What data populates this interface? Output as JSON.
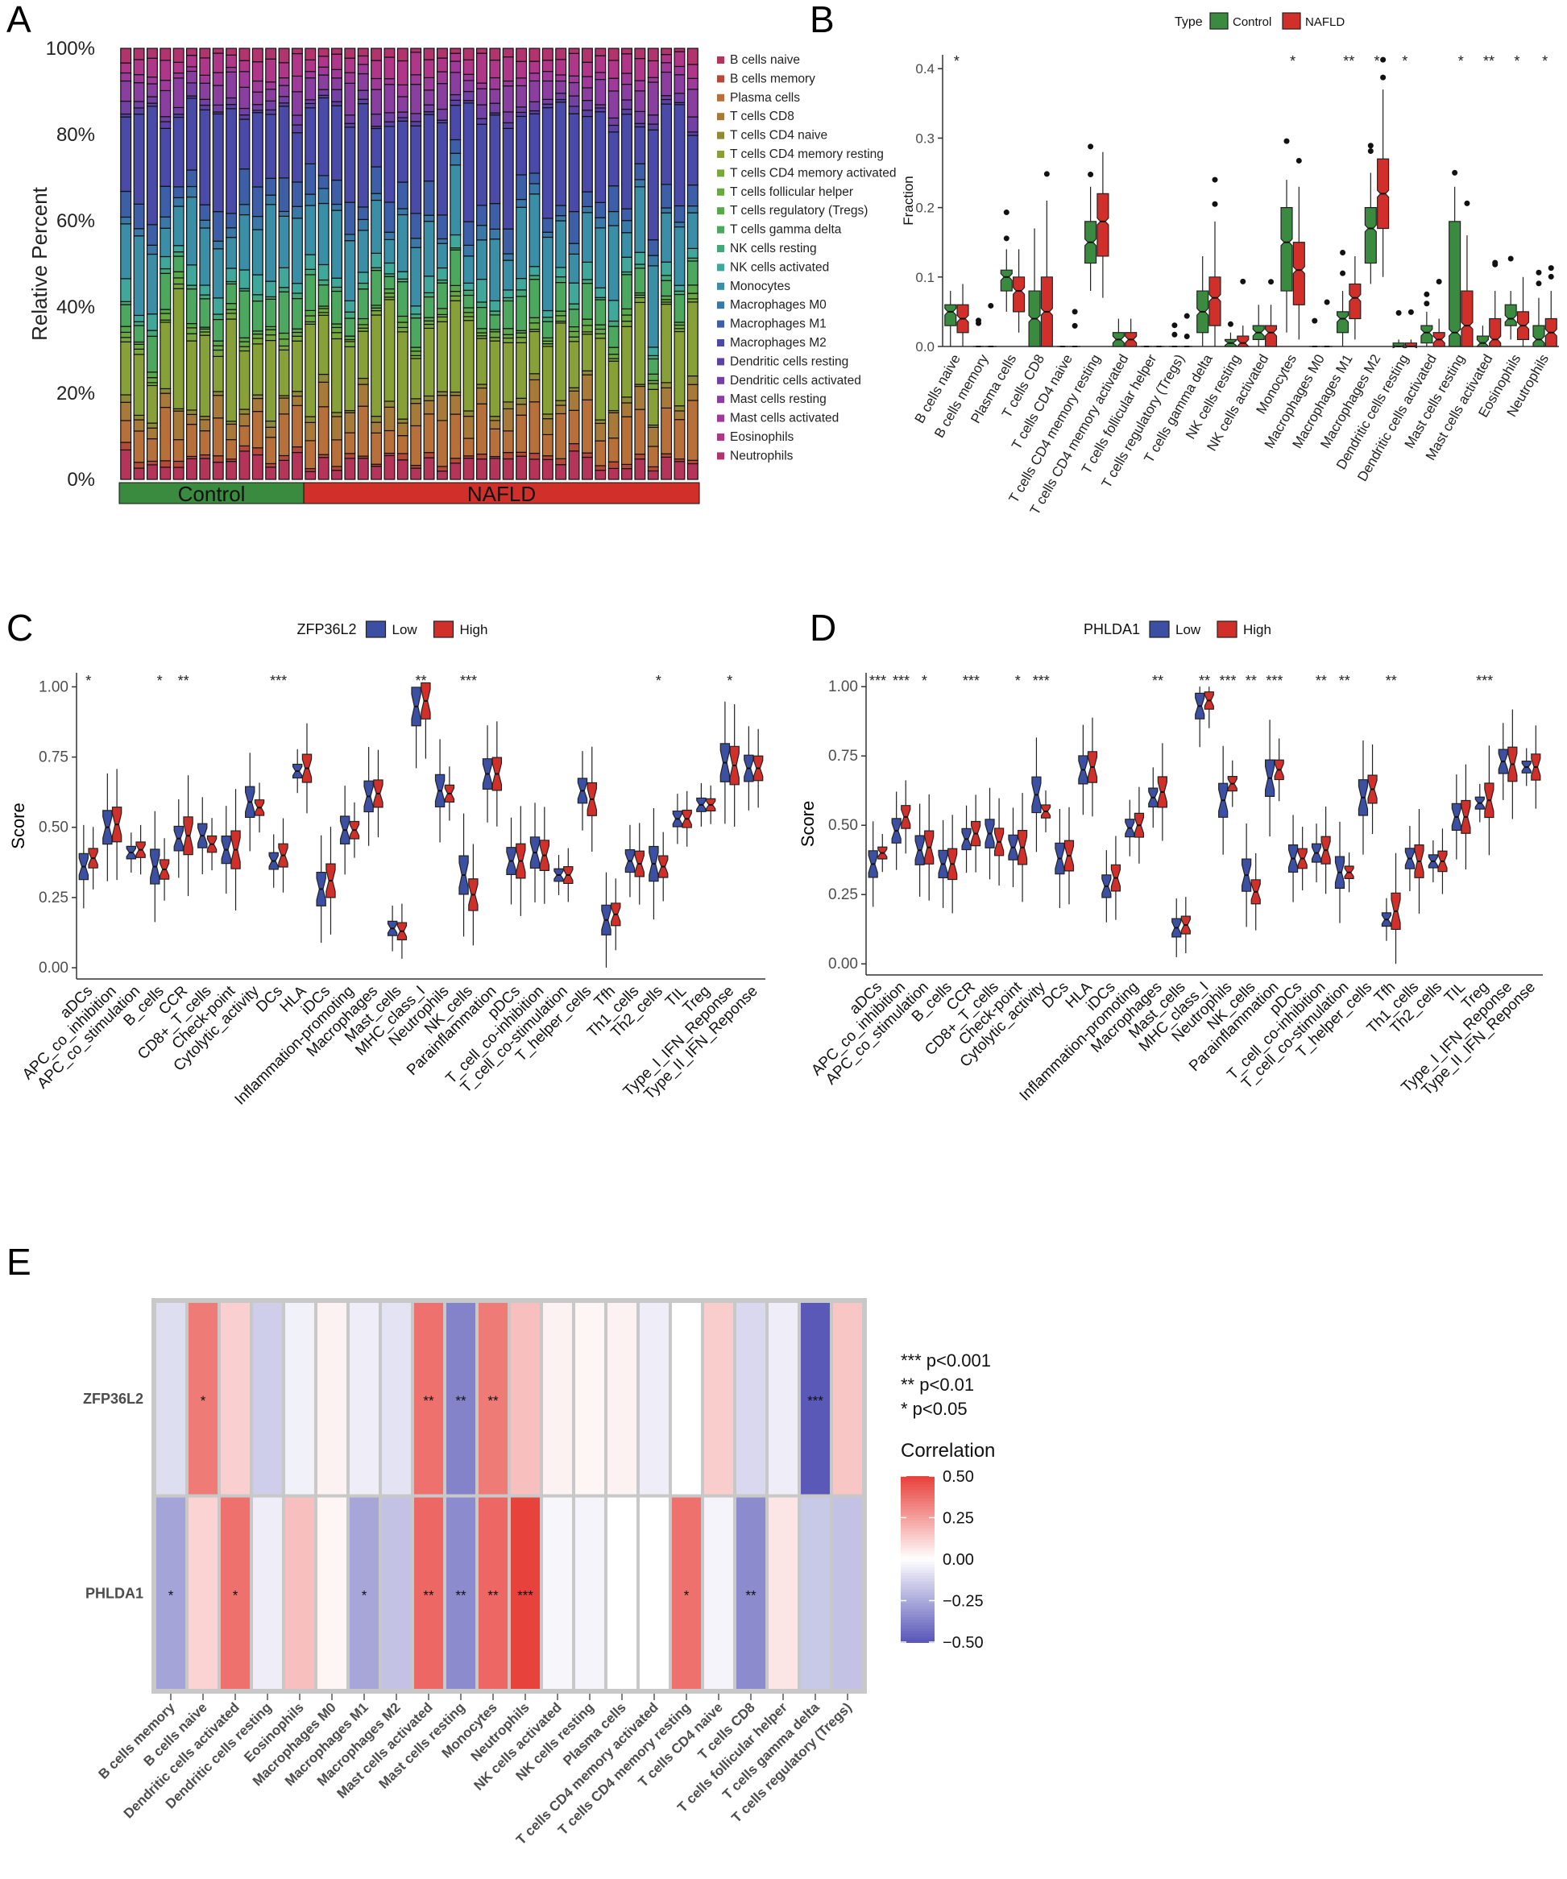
{
  "panels": {
    "A": {
      "letter": "A"
    },
    "B": {
      "letter": "B"
    },
    "C": {
      "letter": "C"
    },
    "D": {
      "letter": "D"
    },
    "E": {
      "letter": "E"
    }
  },
  "colors": {
    "control": "#3a8a3f",
    "nafld": "#d1302a",
    "low": "#3b4fa3",
    "high": "#d1302a",
    "heat_pos": "#e8423d",
    "heat_neg": "#5b59b8"
  },
  "chart_data": [
    {
      "panel": "A",
      "type": "bar",
      "stacked": true,
      "ylabel": "Relative Percent",
      "yticks": [
        "0%",
        "20%",
        "40%",
        "60%",
        "80%",
        "100%"
      ],
      "ylim": [
        0,
        1
      ],
      "group_labels": [
        "Control",
        "NAFLD"
      ],
      "group_counts": [
        14,
        30
      ],
      "series": [
        {
          "name": "B cells naive",
          "color": "#b5345a",
          "mean": 0.04
        },
        {
          "name": "B cells memory",
          "color": "#b54a38",
          "mean": 0.01
        },
        {
          "name": "Plasma cells",
          "color": "#b8703a",
          "mean": 0.08
        },
        {
          "name": "T cells CD8",
          "color": "#a87a3a",
          "mean": 0.04
        },
        {
          "name": "T cells CD4 naive",
          "color": "#8e8a38",
          "mean": 0.01
        },
        {
          "name": "T cells CD4 memory resting",
          "color": "#88a038",
          "mean": 0.17
        },
        {
          "name": "T cells CD4 memory activated",
          "color": "#78a83c",
          "mean": 0.01
        },
        {
          "name": "T cells follicular helper",
          "color": "#6aa843",
          "mean": 0.01
        },
        {
          "name": "T cells regulatory (Tregs)",
          "color": "#5aa84c",
          "mean": 0.01
        },
        {
          "name": "T cells gamma delta",
          "color": "#4ca85e",
          "mean": 0.06
        },
        {
          "name": "NK cells resting",
          "color": "#45a87a",
          "mean": 0.01
        },
        {
          "name": "NK cells activated",
          "color": "#3fa89a",
          "mean": 0.03
        },
        {
          "name": "Monocytes",
          "color": "#3a8ea6",
          "mean": 0.12
        },
        {
          "name": "Macrophages M0",
          "color": "#3a78a8",
          "mean": 0.02
        },
        {
          "name": "Macrophages M1",
          "color": "#3d5fa8",
          "mean": 0.05
        },
        {
          "name": "Macrophages M2",
          "color": "#4a4aa8",
          "mean": 0.19
        },
        {
          "name": "Dendritic cells resting",
          "color": "#5d42a6",
          "mean": 0.01
        },
        {
          "name": "Dendritic cells activated",
          "color": "#7340a3",
          "mean": 0.02
        },
        {
          "name": "Mast cells resting",
          "color": "#8a3ea0",
          "mean": 0.05
        },
        {
          "name": "Mast cells activated",
          "color": "#a03a9a",
          "mean": 0.02
        },
        {
          "name": "Eosinophils",
          "color": "#b0368a",
          "mean": 0.04
        },
        {
          "name": "Neutrophils",
          "color": "#b2346c",
          "mean": 0.02
        }
      ]
    },
    {
      "panel": "B",
      "type": "box",
      "ylabel": "Fraction",
      "ylim": [
        0,
        0.42
      ],
      "yticks": [
        "0.0",
        "0.1",
        "0.2",
        "0.3",
        "0.4"
      ],
      "legend_title": "Type",
      "legend_labels": [
        "Control",
        "NAFLD"
      ],
      "categories": [
        "B cells naive",
        "B cells memory",
        "Plasma cells",
        "T cells CD8",
        "T cells CD4 naive",
        "T cells CD4 memory resting",
        "T cells CD4 memory activated",
        "T cells follicular helper",
        "T cells regulatory (Tregs)",
        "T cells gamma delta",
        "NK cells resting",
        "NK cells activated",
        "Monocytes",
        "Macrophages M0",
        "Macrophages M1",
        "Macrophages M2",
        "Dendritic cells resting",
        "Dendritic cells activated",
        "Mast cells resting",
        "Mast cells activated",
        "Eosinophils",
        "Neutrophils"
      ],
      "significance": [
        "*",
        "",
        "",
        "",
        "",
        "",
        "",
        "",
        "",
        "",
        "",
        "",
        "*",
        "",
        "**",
        "*",
        "*",
        "",
        "*",
        "**",
        "*",
        "*"
      ],
      "series": [
        {
          "name": "Control",
          "medians": [
            0.05,
            0.0,
            0.1,
            0.04,
            0.0,
            0.15,
            0.01,
            0.0,
            0.0,
            0.05,
            0.005,
            0.02,
            0.15,
            0.0,
            0.04,
            0.17,
            0.0,
            0.02,
            0.02,
            0.005,
            0.04,
            0.01
          ],
          "q1": [
            0.03,
            0.0,
            0.08,
            0.0,
            0.0,
            0.12,
            0.0,
            0.0,
            0.0,
            0.02,
            0.0,
            0.01,
            0.08,
            0.0,
            0.02,
            0.12,
            0.0,
            0.005,
            0.0,
            0.0,
            0.03,
            0.0
          ],
          "q3": [
            0.06,
            0.0,
            0.11,
            0.08,
            0.0,
            0.18,
            0.02,
            0.0,
            0.0,
            0.08,
            0.01,
            0.03,
            0.2,
            0.0,
            0.05,
            0.2,
            0.005,
            0.03,
            0.18,
            0.015,
            0.06,
            0.03
          ],
          "lo": [
            0.0,
            0.0,
            0.05,
            0.0,
            0.0,
            0.08,
            0.0,
            0.0,
            0.0,
            0.0,
            0.0,
            0.0,
            0.02,
            0.0,
            0.0,
            0.09,
            0.0,
            0.0,
            0.0,
            0.0,
            0.01,
            0.0
          ],
          "hi": [
            0.08,
            0.0,
            0.14,
            0.17,
            0.0,
            0.23,
            0.04,
            0.0,
            0.0,
            0.13,
            0.02,
            0.06,
            0.24,
            0.0,
            0.08,
            0.25,
            0.01,
            0.05,
            0.23,
            0.03,
            0.08,
            0.07
          ]
        },
        {
          "name": "NAFLD",
          "medians": [
            0.04,
            0.0,
            0.08,
            0.05,
            0.0,
            0.18,
            0.01,
            0.0,
            0.0,
            0.07,
            0.005,
            0.02,
            0.11,
            0.0,
            0.07,
            0.22,
            0.0,
            0.01,
            0.03,
            0.01,
            0.03,
            0.02
          ],
          "q1": [
            0.02,
            0.0,
            0.05,
            0.0,
            0.0,
            0.13,
            0.0,
            0.0,
            0.0,
            0.03,
            0.0,
            0.0,
            0.06,
            0.0,
            0.04,
            0.17,
            0.0,
            0.0,
            0.0,
            0.0,
            0.01,
            0.0
          ],
          "q3": [
            0.06,
            0.0,
            0.1,
            0.1,
            0.0,
            0.22,
            0.02,
            0.0,
            0.0,
            0.1,
            0.015,
            0.03,
            0.15,
            0.0,
            0.09,
            0.27,
            0.005,
            0.02,
            0.08,
            0.04,
            0.05,
            0.04
          ],
          "lo": [
            0.0,
            0.0,
            0.02,
            0.0,
            0.0,
            0.07,
            0.0,
            0.0,
            0.0,
            0.0,
            0.0,
            0.0,
            0.01,
            0.0,
            0.01,
            0.1,
            0.0,
            0.0,
            0.0,
            0.0,
            0.0,
            0.0
          ],
          "hi": [
            0.09,
            0.0,
            0.14,
            0.21,
            0.0,
            0.28,
            0.04,
            0.0,
            0.0,
            0.18,
            0.03,
            0.06,
            0.23,
            0.0,
            0.13,
            0.37,
            0.01,
            0.04,
            0.16,
            0.08,
            0.1,
            0.08
          ]
        }
      ]
    },
    {
      "panel": "C",
      "type": "box",
      "ylabel": "Score",
      "ylim": [
        -0.04,
        1.05
      ],
      "yticks": [
        "0.00",
        "0.25",
        "0.50",
        "0.75",
        "1.00"
      ],
      "legend_title": "ZFP36L2",
      "legend_labels": [
        "Low",
        "High"
      ],
      "categories": [
        "aDCs",
        "APC_co_inhibition",
        "APC_co_stimulation",
        "B_cells",
        "CCR",
        "CD8+_T_cells",
        "Check-point",
        "Cytolytic_activity",
        "DCs",
        "HLA",
        "iDCs",
        "Inflammation-promoting",
        "Macrophages",
        "Mast_cells",
        "MHC_class_I",
        "Neutrophils",
        "NK_cells",
        "Parainflammation",
        "pDCs",
        "T_cell_co-inhibition",
        "T_cell_co-stimulation",
        "T_helper_cells",
        "Tfh",
        "Th1_cells",
        "Th2_cells",
        "TIL",
        "Treg",
        "Type_I_IFN_Reponse",
        "Type_II_IFN_Reponse"
      ],
      "significance": [
        "*",
        "",
        "",
        "*",
        "**",
        "",
        "",
        "",
        "***",
        "",
        "",
        "",
        "",
        "",
        "**",
        "",
        "***",
        "",
        "",
        "",
        "",
        "",
        "",
        "",
        "*",
        "",
        "",
        "*",
        ""
      ],
      "series": [
        {
          "name": "Low",
          "medians": [
            0.36,
            0.5,
            0.41,
            0.36,
            0.46,
            0.47,
            0.42,
            0.59,
            0.38,
            0.7,
            0.28,
            0.49,
            0.61,
            0.14,
            0.93,
            0.63,
            0.33,
            0.69,
            0.38,
            0.41,
            0.33,
            0.63,
            0.17,
            0.38,
            0.37,
            0.53,
            0.58,
            0.73,
            0.71
          ]
        },
        {
          "name": "High",
          "medians": [
            0.39,
            0.51,
            0.42,
            0.35,
            0.47,
            0.44,
            0.42,
            0.57,
            0.4,
            0.71,
            0.31,
            0.49,
            0.62,
            0.13,
            0.95,
            0.62,
            0.26,
            0.69,
            0.38,
            0.4,
            0.33,
            0.6,
            0.19,
            0.37,
            0.36,
            0.53,
            0.58,
            0.72,
            0.71
          ]
        }
      ]
    },
    {
      "panel": "D",
      "type": "box",
      "ylabel": "Score",
      "ylim": [
        -0.04,
        1.05
      ],
      "yticks": [
        "0.00",
        "0.25",
        "0.50",
        "0.75",
        "1.00"
      ],
      "legend_title": "PHLDA1",
      "legend_labels": [
        "Low",
        "High"
      ],
      "categories": [
        "aDCs",
        "APC_co_inhibition",
        "APC_co_stimulation",
        "B_cells",
        "CCR",
        "CD8+_T_cells",
        "Check-point",
        "Cytolytic_activity",
        "DCs",
        "HLA",
        "iDCs",
        "Inflammation-promoting",
        "Macrophages",
        "Mast_cells",
        "MHC_class_I",
        "Neutrophils",
        "NK_cells",
        "Parainflammation",
        "pDCs",
        "T_cell_co-inhibition",
        "T_cell_co-stimulation",
        "T_helper_cells",
        "Tfh",
        "Th1_cells",
        "Th2_cells",
        "TIL",
        "Treg",
        "Type_I_IFN_Reponse",
        "Type_II_IFN_Reponse"
      ],
      "significance": [
        "***",
        "***",
        "*",
        "",
        "***",
        "",
        "*",
        "***",
        "",
        "",
        "",
        "",
        "**",
        "",
        "**",
        "***",
        "**",
        "***",
        "",
        "**",
        "**",
        "",
        "**",
        "",
        "",
        "",
        "***",
        "",
        ""
      ],
      "series": [
        {
          "name": "Low",
          "medians": [
            0.36,
            0.48,
            0.41,
            0.36,
            0.45,
            0.47,
            0.42,
            0.61,
            0.38,
            0.7,
            0.28,
            0.49,
            0.6,
            0.13,
            0.93,
            0.59,
            0.32,
            0.67,
            0.38,
            0.4,
            0.33,
            0.6,
            0.16,
            0.38,
            0.37,
            0.53,
            0.58,
            0.73,
            0.71
          ]
        },
        {
          "name": "High",
          "medians": [
            0.4,
            0.53,
            0.42,
            0.36,
            0.47,
            0.44,
            0.42,
            0.55,
            0.39,
            0.71,
            0.31,
            0.5,
            0.62,
            0.14,
            0.95,
            0.65,
            0.26,
            0.7,
            0.38,
            0.41,
            0.33,
            0.63,
            0.19,
            0.37,
            0.37,
            0.53,
            0.59,
            0.72,
            0.71
          ]
        }
      ]
    },
    {
      "panel": "E",
      "type": "heatmap",
      "rows": [
        "ZFP36L2",
        "PHLDA1"
      ],
      "columns": [
        "B cells memory",
        "B cells naive",
        "Dendritic cells activated",
        "Dendritic cells resting",
        "Eosinophils",
        "Macrophages M0",
        "Macrophages M1",
        "Macrophages M2",
        "Mast cells activated",
        "Mast cells resting",
        "Monocytes",
        "Neutrophils",
        "NK cells activated",
        "NK cells resting",
        "Plasma cells",
        "T cells CD4 memory activated",
        "T cells CD4 memory resting",
        "T cells CD4 naive",
        "T cells CD8",
        "T cells follicular helper",
        "T cells gamma delta",
        "T cells regulatory (Tregs)"
      ],
      "values": [
        [
          -0.12,
          0.42,
          0.15,
          -0.18,
          -0.05,
          0.04,
          -0.06,
          -0.1,
          0.45,
          -0.45,
          0.42,
          0.2,
          0.04,
          0.03,
          0.04,
          -0.06,
          0.0,
          0.16,
          -0.14,
          -0.06,
          -0.6,
          0.18
        ],
        [
          -0.33,
          0.14,
          0.45,
          -0.06,
          0.2,
          0.03,
          -0.32,
          -0.22,
          0.48,
          -0.42,
          0.48,
          0.6,
          -0.03,
          -0.04,
          0.0,
          0.0,
          0.45,
          -0.04,
          -0.42,
          0.08,
          -0.2,
          -0.22
        ]
      ],
      "stars": [
        [
          "",
          "*",
          "",
          "",
          "",
          "",
          "",
          "",
          "**",
          "**",
          "**",
          "",
          "",
          "",
          "",
          "",
          "",
          "",
          "",
          "",
          "***",
          ""
        ],
        [
          "*",
          "",
          "*",
          "",
          "",
          "",
          "*",
          "",
          "**",
          "**",
          "**",
          "***",
          "",
          "",
          "",
          "",
          "*",
          "",
          "**",
          "",
          "",
          ""
        ]
      ],
      "sig_legend": [
        "***  p<0.001",
        "**  p<0.01",
        "*  p<0.05"
      ],
      "colorbar_title": "Correlation",
      "colorbar_ticks": [
        "0.50",
        "0.25",
        "0.00",
        "−0.25",
        "−0.50"
      ],
      "colorbar_range": [
        -0.5,
        0.5
      ]
    }
  ]
}
